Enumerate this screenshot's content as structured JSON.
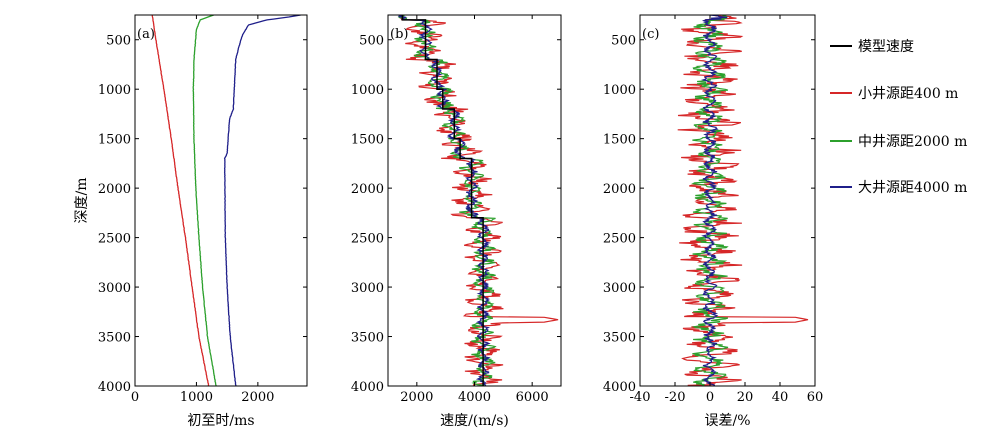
{
  "chart_data": [
    {
      "panel": "(a)",
      "type": "line",
      "xlabel": "初至时/ms",
      "ylabel": "深度/m",
      "xlim": [
        0,
        2800
      ],
      "ylim": [
        250,
        4000
      ],
      "y_inverted": true,
      "xticks": [
        0,
        1000,
        2000
      ],
      "yticks": [
        500,
        1000,
        1500,
        2000,
        2500,
        3000,
        3500,
        4000
      ],
      "series": [
        {
          "name": "小井源距400 m",
          "color": "#d62728",
          "depth": [
            250,
            500,
            1000,
            1500,
            2000,
            2500,
            3000,
            3500,
            4000
          ],
          "values": [
            280,
            340,
            470,
            590,
            700,
            820,
            930,
            1040,
            1200
          ]
        },
        {
          "name": "中井源距2000 m",
          "color": "#2ca02c",
          "depth": [
            250,
            300,
            400,
            700,
            1000,
            1500,
            2000,
            2500,
            3000,
            3500,
            4000
          ],
          "values": [
            1280,
            1060,
            1000,
            960,
            950,
            960,
            990,
            1040,
            1100,
            1180,
            1320
          ]
        },
        {
          "name": "大井源距4000 m",
          "color": "#1f1f8a",
          "depth": [
            250,
            270,
            300,
            350,
            450,
            600,
            700,
            1200,
            1300,
            1650,
            1700,
            2500,
            3000,
            3500,
            4000
          ],
          "values": [
            2700,
            2500,
            2150,
            1850,
            1750,
            1680,
            1640,
            1600,
            1540,
            1500,
            1460,
            1470,
            1500,
            1550,
            1640
          ]
        }
      ]
    },
    {
      "panel": "(b)",
      "type": "line",
      "xlabel": "速度/(m/s)",
      "xlim": [
        1000,
        7000
      ],
      "ylim": [
        250,
        4000
      ],
      "y_inverted": true,
      "xticks": [
        2000,
        4000,
        6000
      ],
      "yticks": [
        500,
        1000,
        1500,
        2000,
        2500,
        3000,
        3500,
        4000
      ],
      "model": {
        "name": "模型速度",
        "color": "#000000",
        "depth": [
          250,
          300,
          600,
          700,
          1000,
          1200,
          1300,
          1500,
          1700,
          2200,
          2300,
          4000
        ],
        "values": [
          1500,
          2300,
          2300,
          2700,
          2900,
          3300,
          3300,
          3500,
          3900,
          3900,
          4300,
          4300
        ]
      },
      "series": [
        {
          "name": "小井源距400 m",
          "color": "#d62728",
          "noise_amplitude": 700,
          "spike": {
            "depth": 3330,
            "value": 6900
          }
        },
        {
          "name": "中井源距2000 m",
          "color": "#2ca02c",
          "noise_amplitude": 420
        },
        {
          "name": "大井源距4000 m",
          "color": "#1f1f8a",
          "noise_amplitude": 200
        }
      ]
    },
    {
      "panel": "(c)",
      "type": "line",
      "xlabel": "误差/%",
      "xlim": [
        -40,
        60
      ],
      "ylim": [
        250,
        4000
      ],
      "y_inverted": true,
      "xticks": [
        -40,
        -20,
        0,
        20,
        40,
        60
      ],
      "yticks": [
        500,
        1000,
        1500,
        2000,
        2500,
        3000,
        3500,
        4000
      ],
      "series": [
        {
          "name": "小井源距400 m",
          "color": "#d62728",
          "noise_amplitude": 18,
          "spike": {
            "depth": 3330,
            "value": 56
          }
        },
        {
          "name": "中井源距2000 m",
          "color": "#2ca02c",
          "noise_amplitude": 10
        },
        {
          "name": "大井源距4000 m",
          "color": "#1f1f8a",
          "noise_amplitude": 4
        }
      ]
    }
  ],
  "legend": {
    "placement": "right",
    "items": [
      {
        "label": "模型速度",
        "color": "#000000"
      },
      {
        "label": "小井源距400 m",
        "color": "#d62728"
      },
      {
        "label": "中井源距2000 m",
        "color": "#2ca02c"
      },
      {
        "label": "大井源距4000 m",
        "color": "#1f1f8a"
      }
    ]
  }
}
